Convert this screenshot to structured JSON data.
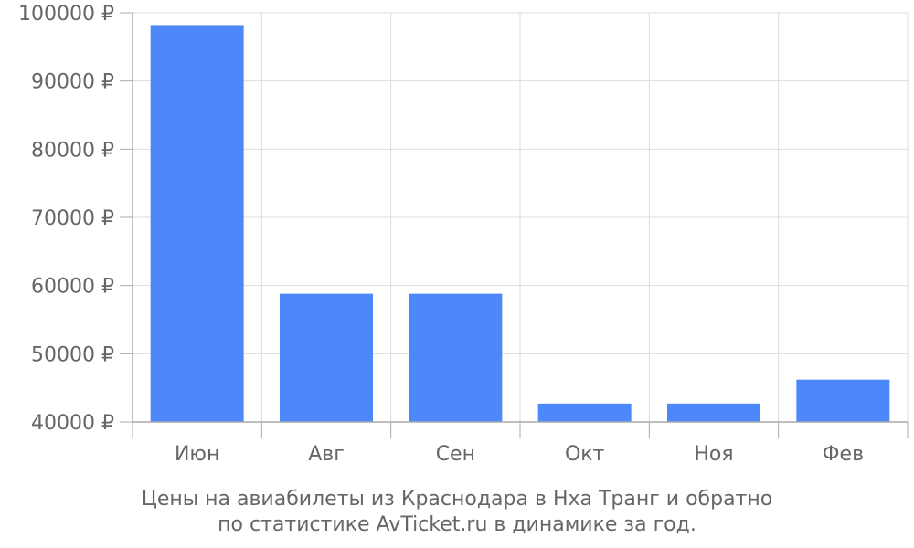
{
  "chart_data": {
    "type": "bar",
    "categories": [
      "Июн",
      "Авг",
      "Сен",
      "Окт",
      "Ноя",
      "Фев"
    ],
    "values": [
      98200,
      58800,
      58800,
      42700,
      42700,
      46200
    ],
    "ylim": [
      40000,
      100000
    ],
    "yticks": [
      40000,
      50000,
      60000,
      70000,
      80000,
      90000,
      100000
    ],
    "ytick_labels": [
      "40000 ₽",
      "50000 ₽",
      "60000 ₽",
      "70000 ₽",
      "80000 ₽",
      "90000 ₽",
      "100000 ₽"
    ],
    "grid": true,
    "bar_color": "#4d88fb",
    "grid_color": "#dddddd",
    "axis_color": "#aaaaaa",
    "text_color": "#666666"
  },
  "caption": {
    "line1": "Цены на авиабилеты из Краснодара в Нха Транг и обратно",
    "line2": "по статистике AvTicket.ru в динамике за год."
  }
}
